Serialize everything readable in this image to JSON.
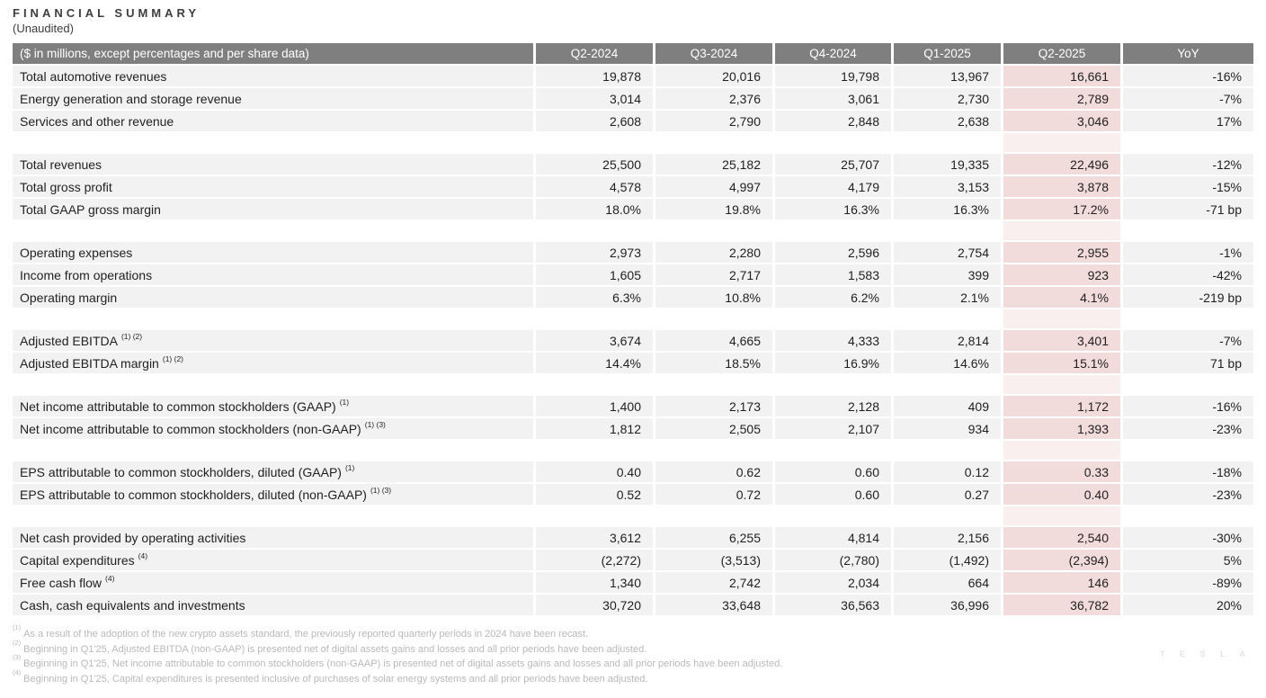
{
  "page": {
    "title": "FINANCIAL SUMMARY",
    "subtitle": "(Unaudited)",
    "watermark": "T E S L A"
  },
  "colors": {
    "header_bg": "#7f7f7f",
    "header_text": "#ffffff",
    "row_bg": "#f2f2f2",
    "highlight_bg": "#f2dcdb",
    "highlight_spacer_bg": "#f9efee",
    "body_text": "#1f1f1f",
    "footnote_text": "#b9b9b9"
  },
  "table": {
    "label_header": "($ in millions, except percentages and per share data)",
    "columns": [
      "Q2-2024",
      "Q3-2024",
      "Q4-2024",
      "Q1-2025",
      "Q2-2025",
      "YoY"
    ],
    "highlight_column": "Q2-2025",
    "groups": [
      {
        "rows": [
          {
            "label": "Total automotive revenues",
            "sup": "",
            "values": [
              "19,878",
              "20,016",
              "19,798",
              "13,967",
              "16,661",
              "-16%"
            ]
          },
          {
            "label": "Energy generation and storage revenue",
            "sup": "",
            "values": [
              "3,014",
              "2,376",
              "3,061",
              "2,730",
              "2,789",
              "-7%"
            ]
          },
          {
            "label": "Services and other revenue",
            "sup": "",
            "values": [
              "2,608",
              "2,790",
              "2,848",
              "2,638",
              "3,046",
              "17%"
            ]
          }
        ]
      },
      {
        "rows": [
          {
            "label": "Total revenues",
            "sup": "",
            "values": [
              "25,500",
              "25,182",
              "25,707",
              "19,335",
              "22,496",
              "-12%"
            ]
          },
          {
            "label": "Total gross profit",
            "sup": "",
            "values": [
              "4,578",
              "4,997",
              "4,179",
              "3,153",
              "3,878",
              "-15%"
            ]
          },
          {
            "label": "Total GAAP gross margin",
            "sup": "",
            "values": [
              "18.0%",
              "19.8%",
              "16.3%",
              "16.3%",
              "17.2%",
              "-71 bp"
            ]
          }
        ]
      },
      {
        "rows": [
          {
            "label": "Operating expenses",
            "sup": "",
            "values": [
              "2,973",
              "2,280",
              "2,596",
              "2,754",
              "2,955",
              "-1%"
            ]
          },
          {
            "label": "Income from operations",
            "sup": "",
            "values": [
              "1,605",
              "2,717",
              "1,583",
              "399",
              "923",
              "-42%"
            ]
          },
          {
            "label": "Operating margin",
            "sup": "",
            "values": [
              "6.3%",
              "10.8%",
              "6.2%",
              "2.1%",
              "4.1%",
              "-219 bp"
            ]
          }
        ]
      },
      {
        "rows": [
          {
            "label": "Adjusted EBITDA",
            "sup": "(1) (2)",
            "values": [
              "3,674",
              "4,665",
              "4,333",
              "2,814",
              "3,401",
              "-7%"
            ]
          },
          {
            "label": "Adjusted EBITDA margin",
            "sup": "(1) (2)",
            "values": [
              "14.4%",
              "18.5%",
              "16.9%",
              "14.6%",
              "15.1%",
              "71 bp"
            ]
          }
        ]
      },
      {
        "rows": [
          {
            "label": "Net income attributable to common stockholders (GAAP)",
            "sup": "(1)",
            "values": [
              "1,400",
              "2,173",
              "2,128",
              "409",
              "1,172",
              "-16%"
            ]
          },
          {
            "label": "Net income attributable to common stockholders (non-GAAP)",
            "sup": "(1) (3)",
            "values": [
              "1,812",
              "2,505",
              "2,107",
              "934",
              "1,393",
              "-23%"
            ]
          }
        ]
      },
      {
        "rows": [
          {
            "label": "EPS attributable to common stockholders, diluted (GAAP)",
            "sup": "(1)",
            "values": [
              "0.40",
              "0.62",
              "0.60",
              "0.12",
              "0.33",
              "-18%"
            ]
          },
          {
            "label": "EPS attributable to common stockholders, diluted (non-GAAP)",
            "sup": "(1) (3)",
            "values": [
              "0.52",
              "0.72",
              "0.60",
              "0.27",
              "0.40",
              "-23%"
            ]
          }
        ]
      },
      {
        "rows": [
          {
            "label": "Net cash provided by operating activities",
            "sup": "",
            "values": [
              "3,612",
              "6,255",
              "4,814",
              "2,156",
              "2,540",
              "-30%"
            ]
          },
          {
            "label": "Capital expenditures",
            "sup": "(4)",
            "values": [
              "(2,272)",
              "(3,513)",
              "(2,780)",
              "(1,492)",
              "(2,394)",
              "5%"
            ]
          },
          {
            "label": "Free cash flow",
            "sup": "(4)",
            "values": [
              "1,340",
              "2,742",
              "2,034",
              "664",
              "146",
              "-89%"
            ]
          },
          {
            "label": "Cash, cash equivalents and investments",
            "sup": "",
            "values": [
              "30,720",
              "33,648",
              "36,563",
              "36,996",
              "36,782",
              "20%"
            ]
          }
        ]
      }
    ]
  },
  "footnotes": [
    {
      "sup": "(1)",
      "text": "As a result of the adoption of the new crypto assets standard, the previously reported quarterly periods in 2024 have been recast."
    },
    {
      "sup": "(2)",
      "text": "Beginning in Q1'25, Adjusted EBITDA (non-GAAP) is presented net of digital assets gains and losses and all prior periods have been adjusted."
    },
    {
      "sup": "(3)",
      "text": "Beginning in Q1'25, Net income attributable to common stockholders (non-GAAP) is presented net of digital assets gains and losses and all prior periods have been adjusted."
    },
    {
      "sup": "(4)",
      "text": "Beginning in Q1'25, Capital expenditures is presented inclusive of purchases of solar energy systems and all prior periods have been adjusted."
    }
  ]
}
